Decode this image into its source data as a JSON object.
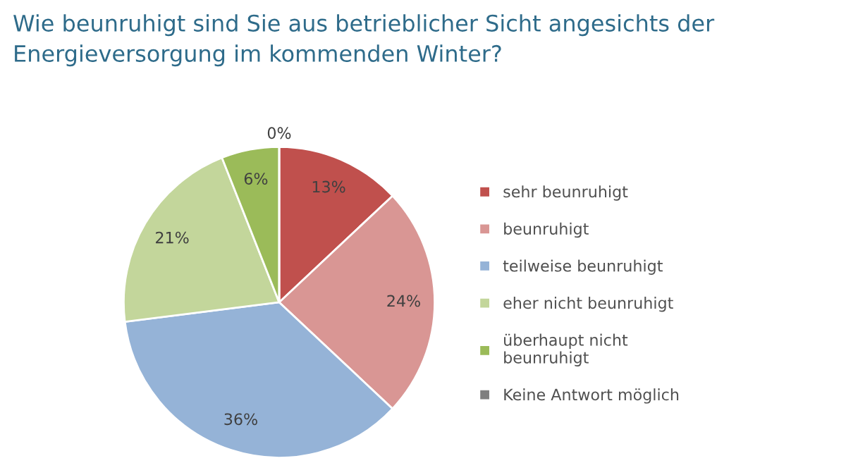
{
  "chart_data": {
    "type": "pie",
    "title": "Wie beunruhigt sind Sie aus betrieblicher Sicht angesichts der\nEnergieversorgung im kommenden Winter?",
    "categories": [
      "sehr beunruhigt",
      "beunruhigt",
      "teilweise beunruhigt",
      "eher nicht beunruhigt",
      "überhaupt nicht\nbeunruhigt",
      "Keine Antwort möglich"
    ],
    "values": [
      13,
      24,
      36,
      21,
      6,
      0
    ],
    "colors": [
      "#c0504d",
      "#d99694",
      "#95b3d7",
      "#c3d69b",
      "#9bbb59",
      "#7f7f7f"
    ],
    "value_labels": [
      "13%",
      "24%",
      "36%",
      "21%",
      "6%",
      "0%"
    ],
    "legend": "right"
  }
}
